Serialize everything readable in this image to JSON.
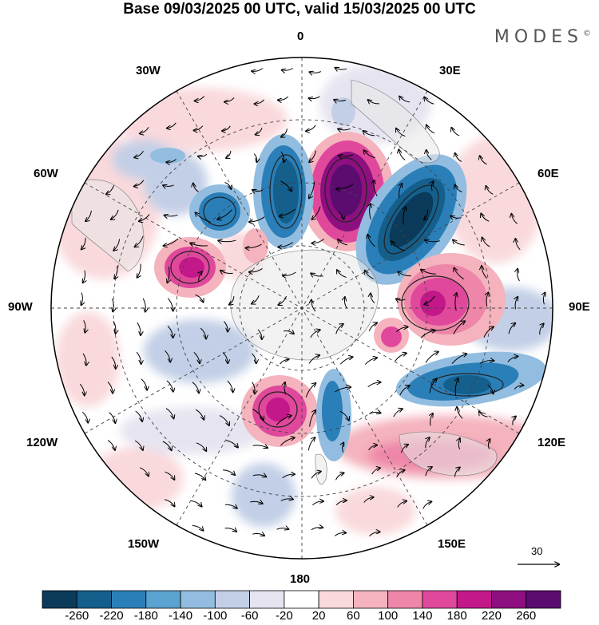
{
  "header": {
    "title": "Base 09/03/2025 00 UTC, valid 15/03/2025 00 UTC",
    "brand": "MODES",
    "brand_mark": "©"
  },
  "map": {
    "longitude_labels": {
      "top": "0",
      "bottom": "180",
      "left": "90W",
      "right": "90E",
      "w30": "30W",
      "e30": "30E",
      "w60": "60W",
      "e60": "60E",
      "w120": "120W",
      "e120": "120E",
      "w150": "150W",
      "e150": "150E"
    },
    "vector_scale_label": "30"
  },
  "colorbar": {
    "colors": [
      "#0b3a5a",
      "#145f8c",
      "#2a7fb8",
      "#5aa2cf",
      "#92bde0",
      "#c2cfe6",
      "#e6e4f0",
      "#ffffff",
      "#f9d9dc",
      "#f4b3bd",
      "#ee86a9",
      "#e0489c",
      "#c2188a",
      "#8e0f7f",
      "#5a0c6f"
    ],
    "labels": [
      "-260",
      "-220",
      "-180",
      "-140",
      "-100",
      "-60",
      "-20",
      "20",
      "60",
      "100",
      "140",
      "180",
      "220",
      "260"
    ]
  }
}
